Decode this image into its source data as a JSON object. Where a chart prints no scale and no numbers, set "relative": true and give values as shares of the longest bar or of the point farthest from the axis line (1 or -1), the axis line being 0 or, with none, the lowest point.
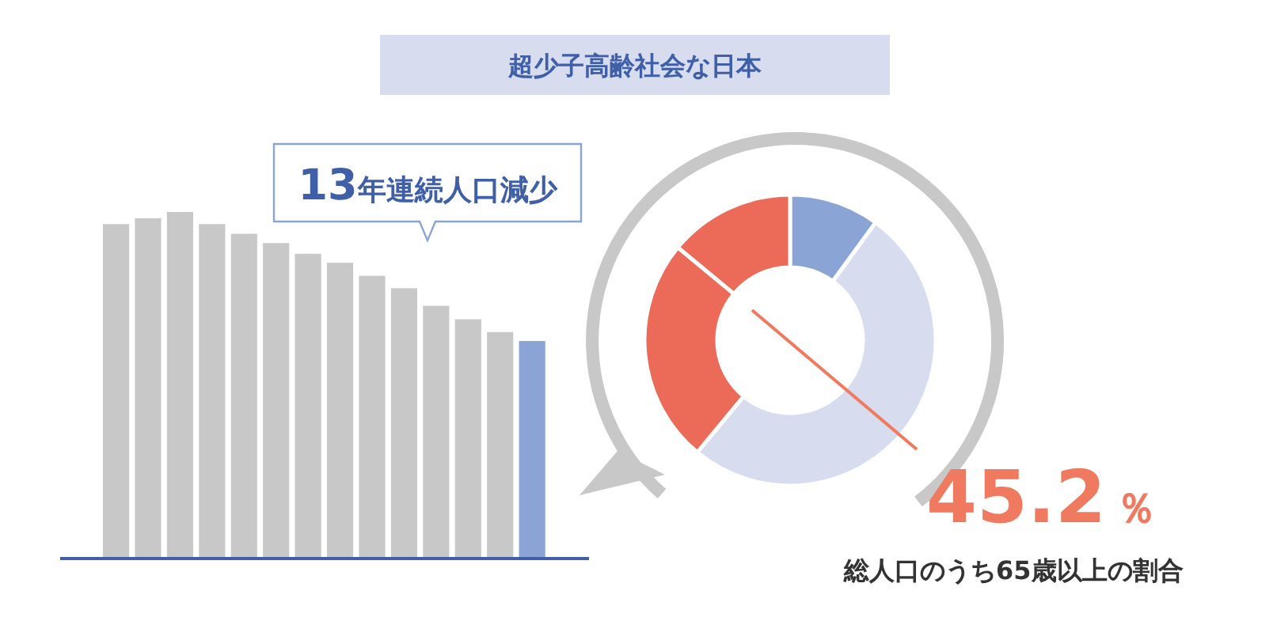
{
  "chart_data": [
    {
      "type": "bar",
      "title": "超少子高齢社会な日本",
      "annotations": [
        "13年連続人口減少"
      ],
      "relative": true,
      "categories": [
        null,
        null,
        null,
        null,
        null,
        null,
        null,
        null,
        null,
        null,
        null,
        null,
        null,
        null
      ],
      "values": [
        0.965,
        0.982,
        1,
        0.965,
        0.937,
        0.91,
        0.879,
        0.853,
        0.815,
        0.779,
        0.728,
        0.689,
        0.652,
        0.626
      ],
      "colors": [
        "#c8c8c8",
        "#c8c8c8",
        "#c8c8c8",
        "#c8c8c8",
        "#c8c8c8",
        "#c8c8c8",
        "#c8c8c8",
        "#c8c8c8",
        "#c8c8c8",
        "#c8c8c8",
        "#c8c8c8",
        "#c8c8c8",
        "#c8c8c8",
        "#8aa5d5"
      ]
    },
    {
      "type": "donut",
      "categories": [
        null,
        null,
        null,
        null
      ],
      "values": [
        10,
        51,
        25,
        14
      ],
      "colors": [
        "#8aa5d5",
        "#d7dcef",
        "#ec6b58",
        "#ec6b58"
      ],
      "annotations": [
        "45.2％",
        "総人口のうち65歳以上の割合"
      ]
    }
  ]
}
